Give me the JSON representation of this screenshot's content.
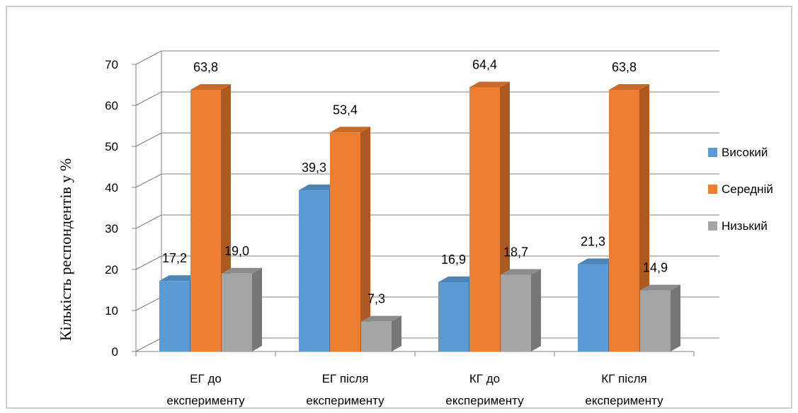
{
  "chart_data": {
    "type": "bar",
    "title": "",
    "xlabel": "",
    "ylabel": "Кількість респондентів у %",
    "ylim": [
      0,
      70
    ],
    "yticks": [
      "0",
      "10",
      "20",
      "30",
      "40",
      "50",
      "60",
      "70"
    ],
    "grid": true,
    "legend_position": "right",
    "categories": [
      [
        "ЕГ до",
        "експерименту"
      ],
      [
        "ЕГ після",
        "експерименту"
      ],
      [
        "КГ до",
        "експерименту"
      ],
      [
        "КГ після",
        "експерименту"
      ]
    ],
    "series": [
      {
        "name": "Високий",
        "color": "#5B9BD5",
        "values": [
          17.2,
          39.3,
          16.9,
          21.3
        ],
        "labels": [
          "17,2",
          "39,3",
          "16,9",
          "21,3"
        ]
      },
      {
        "name": "Середній",
        "color": "#ED7D31",
        "values": [
          63.8,
          53.4,
          64.4,
          63.8
        ],
        "labels": [
          "63,8",
          "53,4",
          "64,4",
          "63,8"
        ]
      },
      {
        "name": "Низький",
        "color": "#A5A5A5",
        "values": [
          19.0,
          7.3,
          18.7,
          14.9
        ],
        "labels": [
          "19,0",
          "7,3",
          "18,7",
          "14,9"
        ]
      }
    ]
  }
}
